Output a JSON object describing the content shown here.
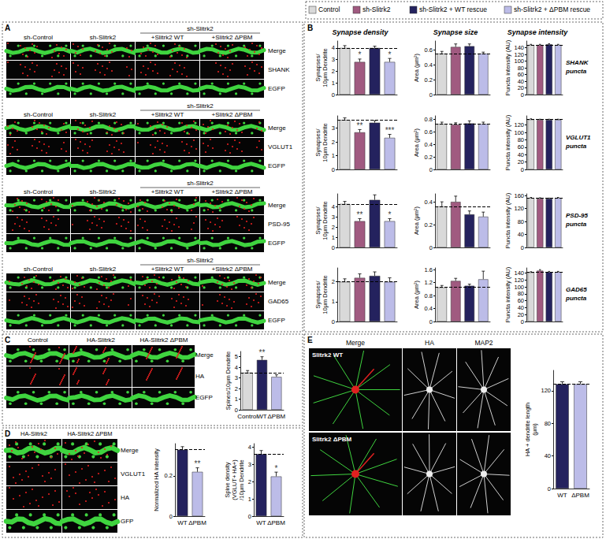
{
  "figure": {
    "panel_labels": [
      "A",
      "B",
      "C",
      "D",
      "E"
    ],
    "legend": [
      {
        "name": "Control",
        "color": "#d9d9d9"
      },
      {
        "name": "sh-Slitrk2",
        "color": "#a05a80"
      },
      {
        "name": "sh-Slitrk2 + WT rescue",
        "color": "#24225e"
      },
      {
        "name": "sh-Slitrk2 + ΔPBM rescue",
        "color": "#bcbce8"
      }
    ],
    "panel_A": {
      "blocks": [
        {
          "headers": [
            "sh-Control",
            "sh-Slitrk2",
            "+Slitrk2 WT",
            "+Slitrk2 ΔPBM"
          ],
          "group_header": "sh-Slitrk2",
          "rows": [
            "Merge",
            "SHANK",
            "EGFP"
          ]
        },
        {
          "headers": [
            "sh-Control",
            "sh-Slitrk2",
            "+Slitrk2 WT",
            "+Slitrk2 ΔPBM"
          ],
          "group_header": "sh-Slitrk2",
          "rows": [
            "Merge",
            "VGLUT1",
            "EGFP"
          ]
        },
        {
          "headers": [
            "sh-Control",
            "sh-Slitrk2",
            "+Slitrk2 WT",
            "+Slitrk2 ΔPBM"
          ],
          "group_header": "sh-Slitrk2",
          "rows": [
            "Merge",
            "PSD-95",
            "EGFP"
          ]
        },
        {
          "headers": [
            "sh-Control",
            "sh-Slitrk2",
            "+Slitrk2 WT",
            "+Slitrk2 ΔPBM"
          ],
          "group_header": "sh-Slitrk2",
          "rows": [
            "Merge",
            "GAD65",
            "EGFP"
          ]
        }
      ]
    },
    "panel_B": {
      "row_labels": [
        [
          "SHANK",
          "puncta"
        ],
        [
          "VGLUT1",
          "puncta"
        ],
        [
          "PSD-95",
          "puncta"
        ],
        [
          "GAD65",
          "puncta"
        ]
      ]
    },
    "panel_C": {
      "headers": [
        "Control",
        "HA-Slitrk2",
        "HA-Slitrk2 ΔPBM"
      ],
      "rows": [
        "Merge",
        "HA",
        "EGFP"
      ]
    },
    "panel_D": {
      "headers": [
        "HA-Slitrk2",
        "HA-Slitrk2 ΔPBM"
      ],
      "rows": [
        "Merge",
        "VGLUT1",
        "HA",
        "GFP"
      ]
    },
    "panel_E": {
      "headers": [
        "Merge",
        "HA",
        "MAP2"
      ],
      "rows": [
        "Slitrk2 WT",
        "Slitrk2 ΔPBM"
      ]
    }
  },
  "chart_data": [
    {
      "type": "bar",
      "title": "Synapse density",
      "y_label": "Synapses/\n10μm Dendrite",
      "categories": [
        null,
        null,
        null,
        null
      ],
      "colors": [
        "#d9d9d9",
        "#a05a80",
        "#24225e",
        "#bcbce8"
      ],
      "values": [
        4.0,
        2.8,
        4.0,
        2.8
      ],
      "errors": [
        0.2,
        0.25,
        0.15,
        0.3
      ],
      "significance": [
        null,
        "*",
        null,
        "*"
      ],
      "ylim": [
        0,
        4.6
      ],
      "yticks": [
        0,
        1,
        2,
        3,
        4
      ],
      "tick_labels": "y"
    },
    {
      "type": "bar",
      "title": "Synapse size",
      "y_label": "Area (μm²)",
      "categories": [
        null,
        null,
        null,
        null
      ],
      "colors": [
        "#d9d9d9",
        "#a05a80",
        "#24225e",
        "#bcbce8"
      ],
      "values": [
        0.55,
        0.64,
        0.65,
        0.55
      ],
      "errors": [
        0.03,
        0.04,
        0.03,
        0.02
      ],
      "ylim": [
        0,
        0.72
      ],
      "yticks": [
        0,
        0.2,
        0.4,
        0.6
      ],
      "tick_labels": "y"
    },
    {
      "type": "bar",
      "title": "Synapse intensity",
      "y_label": "Puncta intensity (AU)",
      "categories": [
        null,
        null,
        null,
        null
      ],
      "colors": [
        "#d9d9d9",
        "#a05a80",
        "#24225e",
        "#bcbce8"
      ],
      "values": [
        148,
        148,
        150,
        148
      ],
      "errors": [
        2,
        2,
        2,
        2
      ],
      "ylim": [
        0,
        160
      ],
      "yticks": [
        0,
        20,
        40,
        60,
        80,
        100,
        120,
        140
      ],
      "tick_labels": "y"
    },
    {
      "type": "bar",
      "y_label": "Synapses/\n10μm Dendrite",
      "categories": [
        null,
        null,
        null,
        null
      ],
      "colors": [
        "#d9d9d9",
        "#a05a80",
        "#24225e",
        "#bcbce8"
      ],
      "values": [
        3.6,
        2.7,
        3.4,
        2.3
      ],
      "errors": [
        0.15,
        0.2,
        0.15,
        0.25
      ],
      "significance": [
        null,
        "**",
        null,
        "***"
      ],
      "ylim": [
        0,
        3.9
      ],
      "yticks": [
        0,
        1,
        2,
        3
      ],
      "tick_labels": "y"
    },
    {
      "type": "bar",
      "y_label": "Area (μm²)",
      "categories": [
        null,
        null,
        null,
        null
      ],
      "colors": [
        "#d9d9d9",
        "#a05a80",
        "#24225e",
        "#bcbce8"
      ],
      "values": [
        0.72,
        0.71,
        0.73,
        0.72
      ],
      "errors": [
        0.03,
        0.03,
        0.04,
        0.03
      ],
      "ylim": [
        0,
        0.85
      ],
      "yticks": [
        0,
        0.2,
        0.4,
        0.6,
        0.8
      ],
      "tick_labels": "y"
    },
    {
      "type": "bar",
      "y_label": "Puncta intensity (AU)",
      "categories": [
        null,
        null,
        null,
        null
      ],
      "colors": [
        "#d9d9d9",
        "#a05a80",
        "#24225e",
        "#bcbce8"
      ],
      "values": [
        135,
        134,
        134,
        134
      ],
      "errors": [
        2,
        2,
        2,
        2
      ],
      "ylim": [
        0,
        145
      ],
      "yticks": [
        0,
        20,
        40,
        60,
        80,
        100,
        120
      ],
      "tick_labels": "y"
    },
    {
      "type": "bar",
      "y_label": "Synapses/\n10μm Dendrite",
      "categories": [
        null,
        null,
        null,
        null
      ],
      "colors": [
        "#d9d9d9",
        "#a05a80",
        "#24225e",
        "#bcbce8"
      ],
      "values": [
        4.3,
        2.6,
        4.7,
        2.6
      ],
      "errors": [
        0.25,
        0.25,
        0.5,
        0.25
      ],
      "significance": [
        null,
        "**",
        null,
        "*"
      ],
      "ylim": [
        0,
        5.3
      ],
      "yticks": [
        0,
        1,
        2,
        3,
        4
      ],
      "tick_labels": "y"
    },
    {
      "type": "bar",
      "y_label": "Area (μm²)",
      "categories": [
        null,
        null,
        null,
        null
      ],
      "colors": [
        "#d9d9d9",
        "#a05a80",
        "#24225e",
        "#bcbce8"
      ],
      "values": [
        0.36,
        0.4,
        0.29,
        0.27
      ],
      "errors": [
        0.04,
        0.05,
        0.03,
        0.04
      ],
      "ylim": [
        0,
        0.47
      ],
      "yticks": [
        0,
        0.2,
        0.4
      ],
      "tick_labels": "y"
    },
    {
      "type": "bar",
      "y_label": "Puncta intensity (AU)",
      "categories": [
        null,
        null,
        null,
        null
      ],
      "colors": [
        "#d9d9d9",
        "#a05a80",
        "#24225e",
        "#bcbce8"
      ],
      "values": [
        152,
        150,
        150,
        152
      ],
      "errors": [
        2,
        3,
        2,
        2
      ],
      "ylim": [
        0,
        165
      ],
      "yticks": [
        0,
        40,
        80,
        120,
        160
      ],
      "tick_labels": "y"
    },
    {
      "type": "bar",
      "y_label": "Synapses/\n10μm Dendrite",
      "categories": [
        null,
        null,
        null,
        null
      ],
      "colors": [
        "#d9d9d9",
        "#a05a80",
        "#24225e",
        "#bcbce8"
      ],
      "values": [
        2.0,
        2.2,
        2.3,
        2.0
      ],
      "errors": [
        0.15,
        0.2,
        0.2,
        0.2
      ],
      "ylim": [
        0,
        2.7
      ],
      "yticks": [
        0,
        1,
        2
      ],
      "tick_labels": "y"
    },
    {
      "type": "bar",
      "y_label": "Area (μm²)",
      "categories": [
        null,
        null,
        null,
        null
      ],
      "colors": [
        "#d9d9d9",
        "#a05a80",
        "#24225e",
        "#bcbce8"
      ],
      "values": [
        1.05,
        1.25,
        1.1,
        1.3
      ],
      "errors": [
        0.06,
        0.08,
        0.05,
        0.25
      ],
      "ylim": [
        0,
        1.65
      ],
      "yticks": [
        0,
        0.4,
        0.8,
        1.2,
        1.6
      ],
      "tick_labels": "y"
    },
    {
      "type": "bar",
      "y_label": "Puncta intensity (AU)",
      "categories": [
        null,
        null,
        null,
        null
      ],
      "colors": [
        "#d9d9d9",
        "#a05a80",
        "#24225e",
        "#bcbce8"
      ],
      "values": [
        142,
        147,
        143,
        143
      ],
      "errors": [
        2,
        3,
        2,
        2
      ],
      "ylim": [
        0,
        155
      ],
      "yticks": [
        0,
        20,
        40,
        60,
        80,
        100,
        120,
        140
      ],
      "tick_labels": "y"
    },
    {
      "type": "bar",
      "y_label": "Spines/10μm Dendrite",
      "categories": [
        "Control",
        "WT",
        "ΔPBM"
      ],
      "colors": [
        "#d9d9d9",
        "#24225e",
        "#bcbce8"
      ],
      "values": [
        3.5,
        4.7,
        3.1
      ],
      "errors": [
        0.2,
        0.3,
        0.2
      ],
      "significance": [
        null,
        "**",
        null
      ],
      "ylim": [
        0,
        5.5
      ],
      "yticks": [
        0,
        1,
        2,
        3,
        4,
        5
      ]
    },
    {
      "type": "bar",
      "y_label": "Normalized HA intensity",
      "categories": [
        "WT",
        "ΔPBM"
      ],
      "colors": [
        "#24225e",
        "#bcbce8"
      ],
      "values": [
        0.33,
        0.22
      ],
      "errors": [
        0.015,
        0.02
      ],
      "significance": [
        null,
        "**"
      ],
      "ylim": [
        0,
        0.36
      ],
      "yticks": [
        0,
        0.2
      ]
    },
    {
      "type": "bar",
      "y_label": "Spine density\n(VGLUT+ HA+)\n/10μm Dendrite",
      "categories": [
        "WT",
        "ΔPBM"
      ],
      "colors": [
        "#24225e",
        "#bcbce8"
      ],
      "values": [
        3.6,
        2.3
      ],
      "errors": [
        0.2,
        0.25
      ],
      "significance": [
        null,
        "*"
      ],
      "ylim": [
        0,
        4.2
      ],
      "yticks": [
        0,
        1,
        2,
        3,
        4
      ]
    },
    {
      "type": "bar",
      "y_label": "HA + dendrite length\n(μm)",
      "categories": [
        "WT",
        "ΔPBM"
      ],
      "colors": [
        "#24225e",
        "#bcbce8"
      ],
      "values": [
        128,
        128
      ],
      "errors": [
        3,
        3
      ],
      "ylim": [
        0,
        145
      ],
      "yticks": [
        0,
        40,
        80,
        120
      ]
    }
  ]
}
